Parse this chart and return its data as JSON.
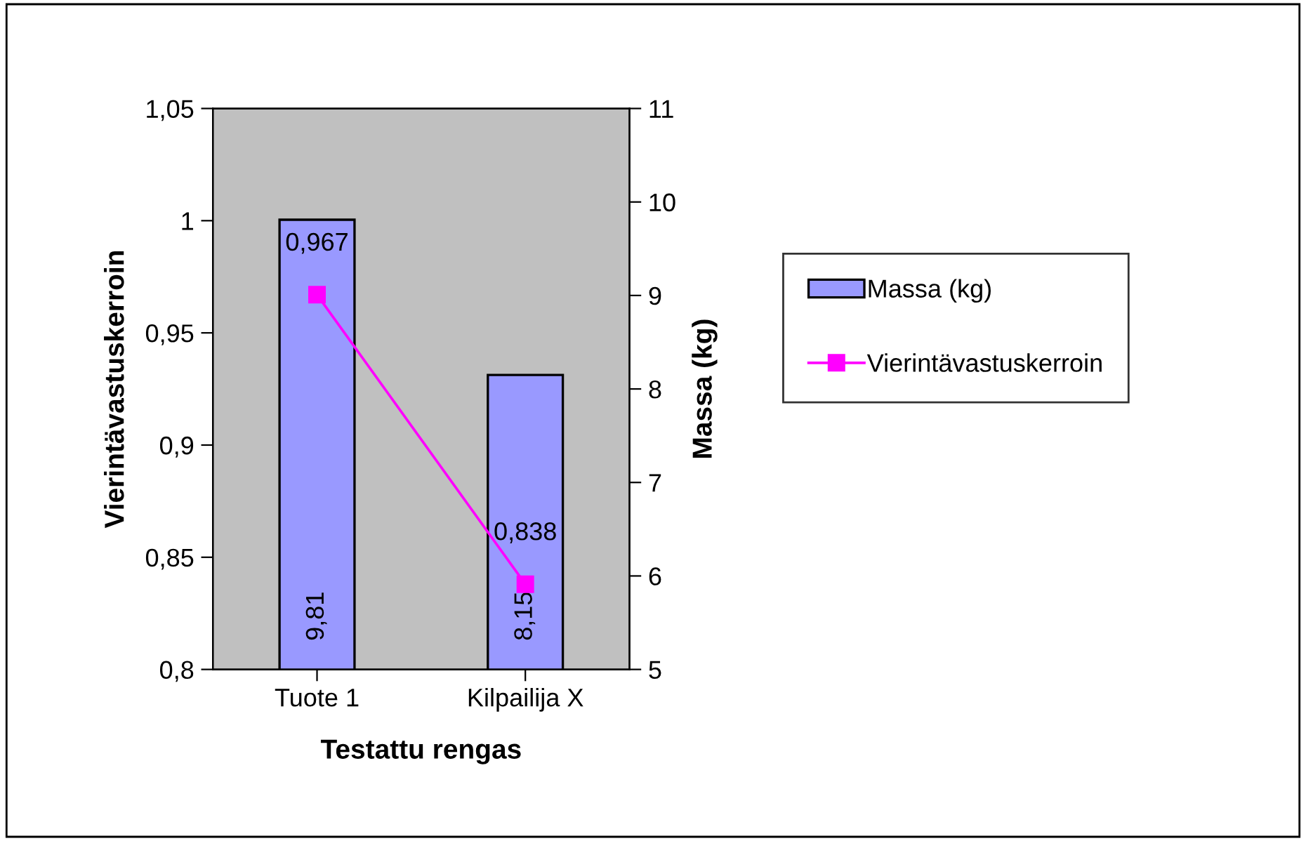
{
  "chart_data": {
    "type": "bar",
    "xlabel": "Testattu rengas",
    "ylabel": "Vierintävastuskerroin",
    "y2label": "Massa (kg)",
    "categories": [
      "Tuote 1",
      "Kilpailija X"
    ],
    "series": [
      {
        "name": "Massa (kg)",
        "axis": "y2",
        "color": "#9999ff",
        "values": [
          9.81,
          8.15
        ],
        "value_labels": [
          "9,81",
          "8,15"
        ]
      },
      {
        "name": "Vierintävastuskerroin",
        "type": "line",
        "color": "#ff00ff",
        "values": [
          0.967,
          0.838
        ],
        "value_labels": [
          "0,967",
          "0,838"
        ]
      }
    ],
    "ylim": [
      0.8,
      1.05
    ],
    "yticks": [
      {
        "value": 0.8,
        "label": "0,8"
      },
      {
        "value": 0.85,
        "label": "0,85"
      },
      {
        "value": 0.9,
        "label": "0,9"
      },
      {
        "value": 0.95,
        "label": "0,95"
      },
      {
        "value": 1,
        "label": "1"
      },
      {
        "value": 1.05,
        "label": "1,05"
      }
    ],
    "y2lim": [
      5,
      11
    ],
    "y2ticks": [
      5,
      6,
      7,
      8,
      9,
      10,
      11
    ],
    "marker": "square",
    "line_style": "solid",
    "grid": false,
    "legend": "right"
  }
}
